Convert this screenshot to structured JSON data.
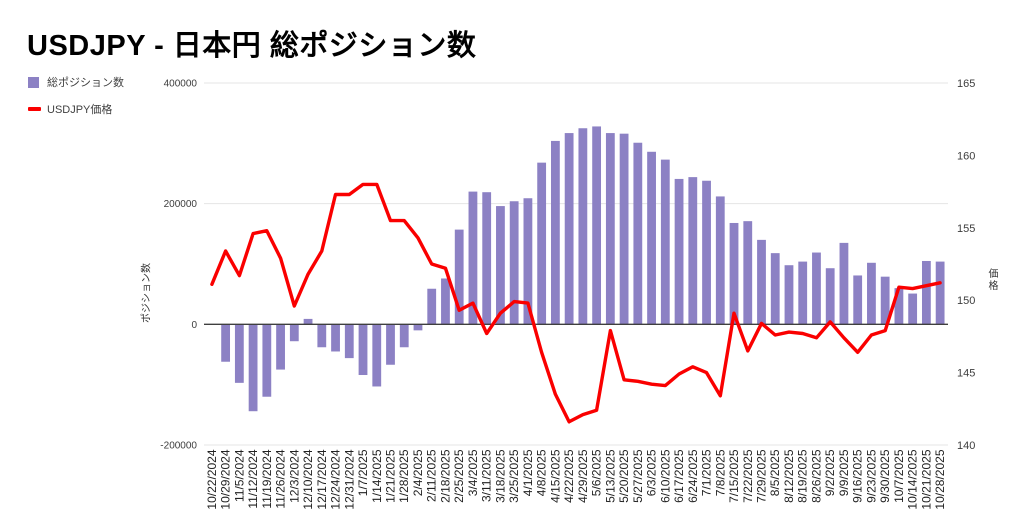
{
  "title": "USDJPY - 日本円 総ポジション数",
  "legend": {
    "bar_label": "総ポジション数",
    "line_label": "USDJPY価格"
  },
  "left_axis": {
    "title": "ポジション数",
    "ticks": [
      {
        "label": "400000",
        "value": 400000
      },
      {
        "label": "200000",
        "value": 200000
      },
      {
        "label": "0",
        "value": 0
      },
      {
        "label": "-200000",
        "value": -200000
      }
    ]
  },
  "right_axis": {
    "title": "価格",
    "ticks": [
      {
        "label": "165",
        "value": 165
      },
      {
        "label": "160",
        "value": 160
      },
      {
        "label": "155",
        "value": 155
      },
      {
        "label": "150",
        "value": 150
      },
      {
        "label": "145",
        "value": 145
      },
      {
        "label": "140",
        "value": 140
      }
    ]
  },
  "colors": {
    "bar": "#8c81c4",
    "line": "#fa0000",
    "grid": "#e4e4e4",
    "zero_line": "#3f3f3f",
    "tick_text": "#3d3d3d",
    "date_text": "#222222"
  },
  "chart_data": {
    "type": "combo",
    "title": "USDJPY - 日本円 総ポジション数",
    "legend_position": "top-left",
    "grid": true,
    "left_ylabel": "ポジション数",
    "right_ylabel": "価格",
    "left_ylim": [
      -200000,
      400000
    ],
    "right_ylim": [
      140,
      165
    ],
    "categories": [
      "10/22/2024",
      "10/29/2024",
      "11/5/2024",
      "11/12/2024",
      "11/19/2024",
      "11/26/2024",
      "12/3/2024",
      "12/10/2024",
      "12/17/2024",
      "12/24/2024",
      "12/31/2024",
      "1/7/2025",
      "1/14/2025",
      "1/21/2025",
      "1/28/2025",
      "2/4/2025",
      "2/11/2025",
      "2/18/2025",
      "2/25/2025",
      "3/4/2025",
      "3/11/2025",
      "3/18/2025",
      "3/25/2025",
      "4/1/2025",
      "4/8/2025",
      "4/15/2025",
      "4/22/2025",
      "4/29/2025",
      "5/6/2025",
      "5/13/2025",
      "5/20/2025",
      "5/27/2025",
      "6/3/2025",
      "6/10/2025",
      "6/17/2025",
      "6/24/2025",
      "7/1/2025",
      "7/8/2025",
      "7/15/2025",
      "7/22/2025",
      "7/29/2025",
      "8/5/2025",
      "8/12/2025",
      "8/19/2025",
      "8/26/2025",
      "9/2/2025",
      "9/9/2025",
      "9/16/2025",
      "9/23/2025",
      "9/30/2025",
      "10/7/2025",
      "10/14/2025",
      "10/21/2025",
      "10/28/2025"
    ],
    "series": [
      {
        "name": "総ポジション数",
        "type": "bar",
        "axis": "left",
        "values": [
          0,
          -62000,
          -97000,
          -144000,
          -120000,
          -75000,
          -28000,
          9000,
          -38000,
          -45000,
          -56000,
          -84000,
          -103000,
          -67000,
          -38000,
          -10000,
          59000,
          76000,
          157000,
          220000,
          219000,
          196000,
          204000,
          209000,
          268000,
          304000,
          317000,
          325000,
          328000,
          317000,
          316000,
          301000,
          286000,
          273000,
          241000,
          244000,
          238000,
          212000,
          168000,
          171000,
          140000,
          118000,
          98000,
          104000,
          119000,
          93000,
          135000,
          81000,
          102000,
          79000,
          60000,
          51000,
          105000,
          104000
        ]
      },
      {
        "name": "USDJPY価格",
        "type": "line",
        "axis": "right",
        "values": [
          151.1,
          153.4,
          151.7,
          154.6,
          154.8,
          152.9,
          149.6,
          151.8,
          153.4,
          157.3,
          157.3,
          158.0,
          158.0,
          155.5,
          155.5,
          154.3,
          152.5,
          152.2,
          149.3,
          149.8,
          147.7,
          149.1,
          149.9,
          149.8,
          146.4,
          143.5,
          141.6,
          142.1,
          142.4,
          147.9,
          144.5,
          144.4,
          144.2,
          144.1,
          144.9,
          145.4,
          145.0,
          143.4,
          149.1,
          146.5,
          148.4,
          147.6,
          147.8,
          147.7,
          147.4,
          148.5,
          147.4,
          146.4,
          147.6,
          147.9,
          150.9,
          150.8,
          151.0,
          151.2
        ]
      }
    ]
  }
}
